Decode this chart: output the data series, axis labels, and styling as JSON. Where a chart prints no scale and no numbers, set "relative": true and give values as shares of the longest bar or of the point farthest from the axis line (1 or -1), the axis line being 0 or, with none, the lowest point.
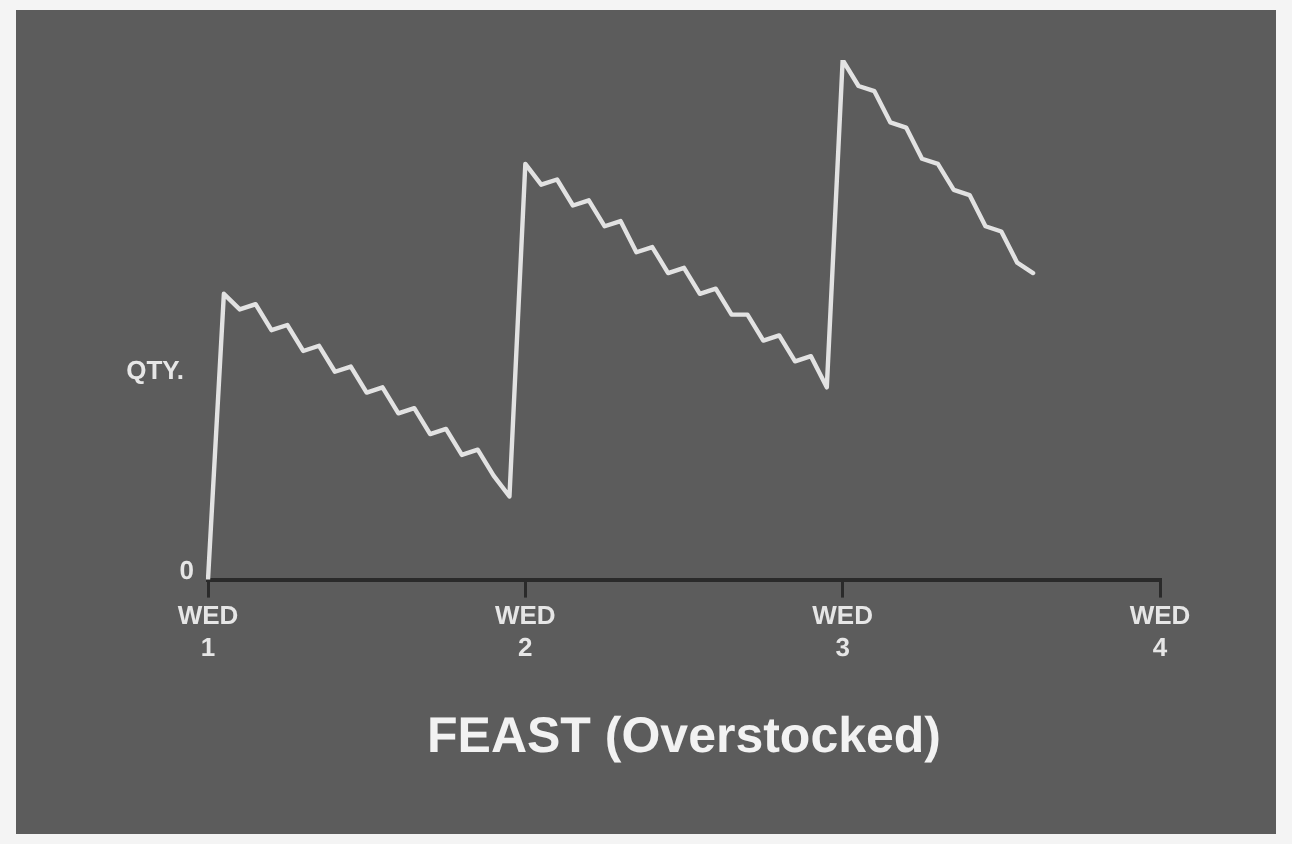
{
  "chart_data": {
    "type": "line",
    "title": "FEAST (Overstocked)",
    "ylabel": "QTY.",
    "relative": true,
    "categories": [
      "WED 1",
      null,
      null,
      null,
      null,
      null,
      null,
      null,
      null,
      null,
      null,
      null,
      null,
      null,
      null,
      null,
      null,
      null,
      null,
      null,
      "WED 2",
      null,
      null,
      null,
      null,
      null,
      null,
      null,
      null,
      null,
      null,
      null,
      null,
      null,
      null,
      null,
      null,
      null,
      null,
      null,
      "WED 3",
      null,
      null,
      null,
      null,
      null,
      null,
      null,
      null,
      null,
      null,
      null,
      null,
      null,
      null,
      null,
      null,
      null,
      null,
      null,
      "WED 4"
    ],
    "values": [
      0,
      0.55,
      0.52,
      0.53,
      0.48,
      0.49,
      0.44,
      0.45,
      0.4,
      0.41,
      0.36,
      0.37,
      0.32,
      0.33,
      0.28,
      0.29,
      0.24,
      0.25,
      0.2,
      0.16,
      0.8,
      0.76,
      0.77,
      0.72,
      0.73,
      0.68,
      0.69,
      0.63,
      0.64,
      0.59,
      0.6,
      0.55,
      0.56,
      0.51,
      0.51,
      0.46,
      0.47,
      0.42,
      0.43,
      0.37,
      1,
      0.95,
      0.94,
      0.88,
      0.87,
      0.81,
      0.8,
      0.75,
      0.74,
      0.68,
      0.67,
      0.61,
      0.59,
      null,
      null,
      null,
      null,
      null,
      null,
      null,
      null
    ],
    "color": "#e2e2e2",
    "annotations": [
      "0"
    ],
    "tick_labels": "x",
    "grid": false,
    "legend": false,
    "marker": "none",
    "line_style": "solid"
  }
}
